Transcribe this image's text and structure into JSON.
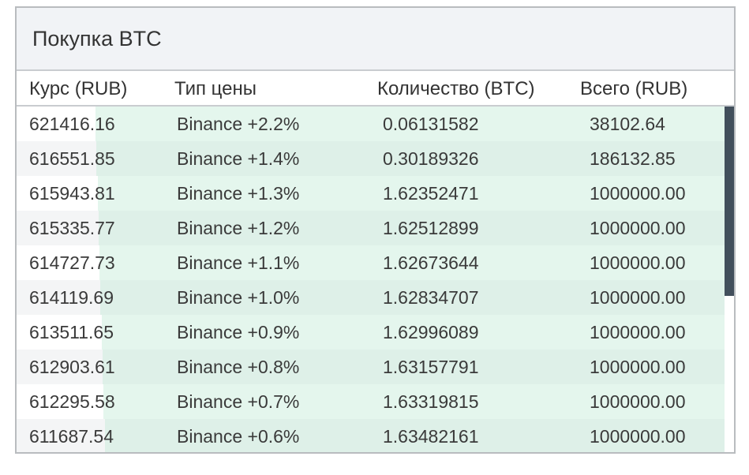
{
  "panel": {
    "title": "Покупка BTC"
  },
  "columns": {
    "rate": "Курс (RUB)",
    "price_type": "Тип цены",
    "quantity": "Количество (BTC)",
    "total": "Всего (RUB)"
  },
  "rows": [
    {
      "rate": "621416.16",
      "price_type": "Binance +2.2%",
      "quantity": "0.06131582",
      "total": "38102.64"
    },
    {
      "rate": "616551.85",
      "price_type": "Binance +1.4%",
      "quantity": "0.30189326",
      "total": "186132.85"
    },
    {
      "rate": "615943.81",
      "price_type": "Binance +1.3%",
      "quantity": "1.62352471",
      "total": "1000000.00"
    },
    {
      "rate": "615335.77",
      "price_type": "Binance +1.2%",
      "quantity": "1.62512899",
      "total": "1000000.00"
    },
    {
      "rate": "614727.73",
      "price_type": "Binance +1.1%",
      "quantity": "1.62673644",
      "total": "1000000.00"
    },
    {
      "rate": "614119.69",
      "price_type": "Binance +1.0%",
      "quantity": "1.62834707",
      "total": "1000000.00"
    },
    {
      "rate": "613511.65",
      "price_type": "Binance +0.9%",
      "quantity": "1.62996089",
      "total": "1000000.00"
    },
    {
      "rate": "612903.61",
      "price_type": "Binance +0.8%",
      "quantity": "1.63157791",
      "total": "1000000.00"
    },
    {
      "rate": "612295.58",
      "price_type": "Binance +0.7%",
      "quantity": "1.63319815",
      "total": "1000000.00"
    },
    {
      "rate": "611687.54",
      "price_type": "Binance +0.6%",
      "quantity": "1.63482161",
      "total": "1000000.00"
    }
  ],
  "colors": {
    "depth_bar": "#c4ebd8",
    "scroll_thumb": "#424f5c",
    "header_bg": "#f1f3f6"
  }
}
